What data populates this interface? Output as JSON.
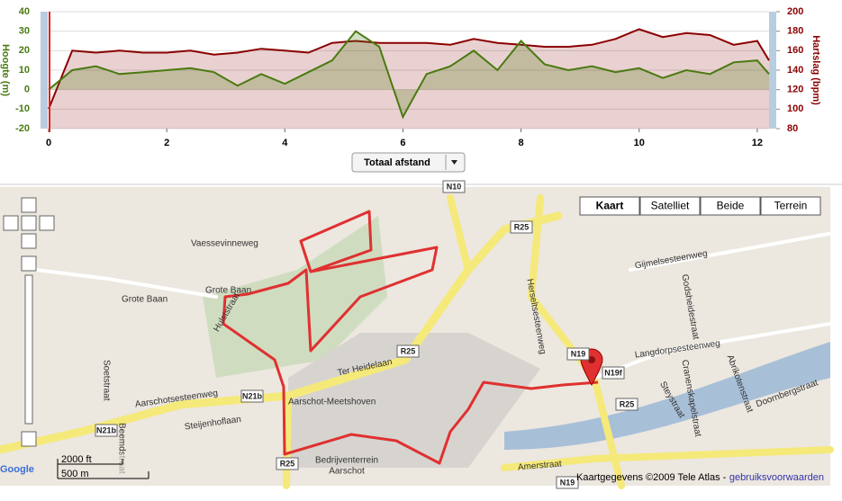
{
  "chart_data": {
    "type": "line",
    "y_label": "Hoogte (m)",
    "y2_label": "Hartslag (bpm)",
    "x": [
      0,
      0.4,
      0.8,
      1.2,
      1.6,
      2.0,
      2.4,
      2.8,
      3.2,
      3.6,
      4.0,
      4.4,
      4.8,
      5.2,
      5.6,
      6.0,
      6.4,
      6.8,
      7.2,
      7.6,
      8.0,
      8.4,
      8.8,
      9.2,
      9.6,
      10.0,
      10.4,
      10.8,
      11.2,
      11.6,
      12.0,
      12.2
    ],
    "xlim": [
      0,
      12.2
    ],
    "xticks": [
      0,
      2,
      4,
      6,
      8,
      10,
      12
    ],
    "ylim": [
      -20,
      40
    ],
    "yticks": [
      -20,
      -10,
      0,
      10,
      20,
      30,
      40
    ],
    "y2lim": [
      80,
      200
    ],
    "y2ticks": [
      80,
      100,
      120,
      140,
      160,
      180,
      200
    ],
    "series": [
      {
        "name": "Hoogte",
        "color": "#4a7a10",
        "values": [
          0,
          10,
          12,
          8,
          9,
          10,
          11,
          9,
          2,
          8,
          3,
          9,
          15,
          30,
          22,
          -14,
          8,
          12,
          20,
          10,
          25,
          13,
          10,
          12,
          9,
          11,
          6,
          10,
          8,
          14,
          15,
          8
        ]
      },
      {
        "name": "Hartslag",
        "color": "#8b0000",
        "axis": "y2",
        "values": [
          100,
          160,
          158,
          160,
          158,
          158,
          160,
          156,
          158,
          162,
          160,
          158,
          168,
          170,
          168,
          168,
          168,
          166,
          172,
          168,
          166,
          164,
          164,
          166,
          172,
          182,
          174,
          178,
          176,
          166,
          170,
          150
        ]
      }
    ],
    "selector": "Totaal afstand"
  },
  "map": {
    "buttons": [
      "Kaart",
      "Satelliet",
      "Beide",
      "Terrein"
    ],
    "labels": [
      "Vaessevinneweg",
      "Grote Baan",
      "Grote Baan",
      "Hulststraat",
      "Soetstraat",
      "Aarschotsesteenweg",
      "Ter Heidelaan",
      "Aarschot-Meetshoven",
      "Steijenhoflaan",
      "Beemdstraat",
      "Bedrijventerrein",
      "Aarschot",
      "Herseltsesteenweg",
      "Gijmelsesteenweg",
      "Langdorpsesteenweg",
      "Godsheidestraat",
      "Steystraat",
      "Cranenskapelstraat",
      "Amerstraat",
      "Doornbergstraat",
      "Abrikotenstraat"
    ],
    "shields": [
      "R25",
      "R25",
      "R25",
      "R25",
      "N21b",
      "N21b",
      "N19",
      "N19f",
      "N19",
      "N10"
    ],
    "scale": [
      "2000 ft",
      "500 m"
    ],
    "logo": "Google",
    "copyright": "Kaartgegevens ©2009 Tele Atlas - ",
    "terms": "gebruiksvoorwaarden"
  }
}
